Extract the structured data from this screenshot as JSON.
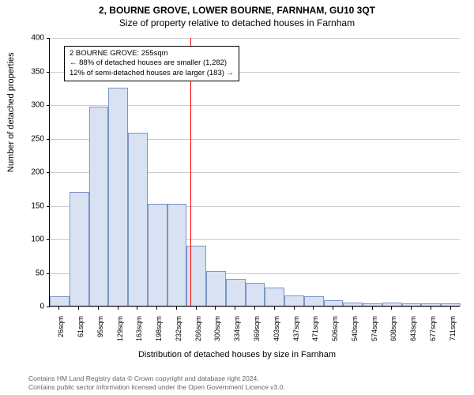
{
  "title_main": "2, BOURNE GROVE, LOWER BOURNE, FARNHAM, GU10 3QT",
  "title_sub": "Size of property relative to detached houses in Farnham",
  "y_axis_label": "Number of detached properties",
  "x_axis_label": "Distribution of detached houses by size in Farnham",
  "chart": {
    "type": "histogram",
    "ylim": [
      0,
      400
    ],
    "yticks": [
      0,
      50,
      100,
      150,
      200,
      250,
      300,
      350,
      400
    ],
    "xticks": [
      "26sqm",
      "61sqm",
      "95sqm",
      "129sqm",
      "163sqm",
      "198sqm",
      "232sqm",
      "266sqm",
      "300sqm",
      "334sqm",
      "369sqm",
      "403sqm",
      "437sqm",
      "471sqm",
      "506sqm",
      "540sqm",
      "574sqm",
      "608sqm",
      "643sqm",
      "677sqm",
      "711sqm"
    ],
    "values": [
      14,
      170,
      297,
      325,
      258,
      152,
      152,
      90,
      52,
      40,
      34,
      27,
      15,
      14,
      8,
      5,
      3,
      5,
      4,
      4,
      3
    ],
    "bar_fill": "#d8e2f2",
    "bar_stroke": "#7b95c6",
    "grid_color": "#cccccc",
    "background": "#ffffff",
    "bar_width_ratio": 1.0
  },
  "marker": {
    "position_index": 6.7,
    "color": "#ff0000"
  },
  "info_box": {
    "line1": "2 BOURNE GROVE: 255sqm",
    "line2": "← 88% of detached houses are smaller (1,282)",
    "line3": "12% of semi-detached houses are larger (183) →"
  },
  "footer": {
    "line1": "Contains HM Land Registry data © Crown copyright and database right 2024.",
    "line2": "Contains public sector information licensed under the Open Government Licence v3.0."
  }
}
